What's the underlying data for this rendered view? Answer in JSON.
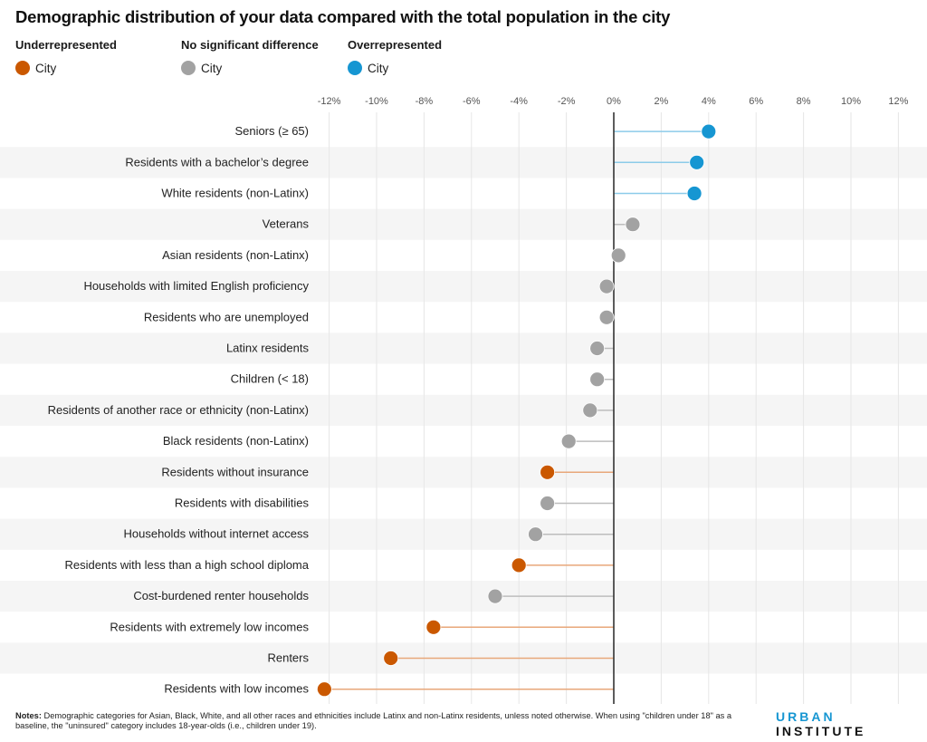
{
  "title": "Demographic distribution of your data compared with the total population in the city",
  "legend": [
    {
      "heading": "Underrepresented",
      "label": "City",
      "color": "#ca5800",
      "key": "under"
    },
    {
      "heading": "No significant difference",
      "label": "City",
      "color": "#a2a2a2",
      "key": "none"
    },
    {
      "heading": "Overrepresented",
      "label": "City",
      "color": "#1696d2",
      "key": "over"
    }
  ],
  "colors": {
    "under": "#ca5800",
    "under_line": "#e8a77a",
    "none": "#a2a2a2",
    "none_line": "#bdbdbd",
    "over": "#1696d2",
    "over_line": "#8ccbe9",
    "band": "#f5f5f5",
    "grid": "#e6e6e6",
    "zero_line": "#333333"
  },
  "notes": {
    "label": "Notes:",
    "text": " Demographic categories for Asian, Black, White, and all other races and ethnicities include Latinx and non-Latinx residents, unless noted otherwise. When using \"children under 18\" as a baseline, the \"uninsured\" category includes 18-year-olds (i.e., children under 19)."
  },
  "logo": {
    "part1": "URBAN",
    "part2": "INSTITUTE"
  },
  "chart_data": {
    "type": "lollipop",
    "title": "Demographic distribution of your data compared with the total population in the city",
    "xlabel": "",
    "ylabel": "",
    "xlim": [
      -12,
      12
    ],
    "x_ticks": [
      -12,
      -10,
      -8,
      -6,
      -4,
      -2,
      0,
      2,
      4,
      6,
      8,
      10,
      12
    ],
    "x_tick_labels": [
      "-12%",
      "-10%",
      "-8%",
      "-6%",
      "-4%",
      "-2%",
      "0%",
      "2%",
      "4%",
      "6%",
      "8%",
      "10%",
      "12%"
    ],
    "grid": true,
    "legend_position": "top-left",
    "series_name": "City",
    "categories": [
      "Seniors (≥ 65)",
      "Residents with a bachelor’s degree",
      "White residents (non-Latinx)",
      "Veterans",
      "Asian residents (non-Latinx)",
      "Households with limited English proficiency",
      "Residents who are unemployed",
      "Latinx residents",
      "Children (< 18)",
      "Residents of another race or ethnicity (non-Latinx)",
      "Black residents (non-Latinx)",
      "Residents without insurance",
      "Residents with disabilities",
      "Households without internet access",
      "Residents with less than a high school diploma",
      "Cost-burdened renter households",
      "Residents with extremely low incomes",
      "Renters",
      "Residents with low incomes"
    ],
    "values": [
      4.0,
      3.5,
      3.4,
      0.8,
      0.2,
      -0.3,
      -0.3,
      -0.7,
      -0.7,
      -1.0,
      -1.9,
      -2.8,
      -2.8,
      -3.3,
      -4.0,
      -5.0,
      -7.6,
      -9.4,
      -12.2
    ],
    "status": [
      "over",
      "over",
      "over",
      "none",
      "none",
      "none",
      "none",
      "none",
      "none",
      "none",
      "none",
      "under",
      "none",
      "none",
      "under",
      "none",
      "under",
      "under",
      "under"
    ]
  }
}
